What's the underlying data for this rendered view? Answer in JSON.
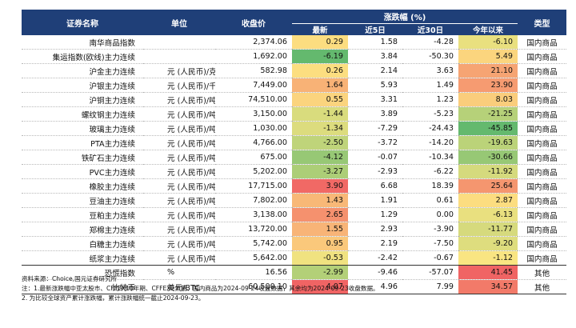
{
  "table": {
    "headers": {
      "name": "证券名称",
      "unit": "单位",
      "close": "收盘价",
      "change_group": "涨跌幅 (%)",
      "latest": "最新",
      "d5": "近5日",
      "d30": "近30日",
      "ytd": "今年以来",
      "type": "类型"
    },
    "rows": [
      {
        "name": "南华商品指数",
        "unit": "",
        "close": "2,374.06",
        "latest": "0.29",
        "d5": "1.58",
        "d30": "-4.28",
        "ytd": "-6.10",
        "type": "国内商品"
      },
      {
        "name": "集运指数(欧线)主力连续",
        "unit": "",
        "close": "1,692.00",
        "latest": "-6.19",
        "d5": "3.84",
        "d30": "-50.30",
        "ytd": "5.49",
        "type": "国内商品"
      },
      {
        "name": "沪金主力连续",
        "unit": "元 (人民币)/克",
        "close": "582.98",
        "latest": "0.26",
        "d5": "2.14",
        "d30": "3.63",
        "ytd": "21.10",
        "type": "国内商品"
      },
      {
        "name": "沪银主力连续",
        "unit": "元 (人民币)/千克",
        "close": "7,449.00",
        "latest": "1.64",
        "d5": "5.93",
        "d30": "1.49",
        "ytd": "23.90",
        "type": "国内商品"
      },
      {
        "name": "沪铜主力连续",
        "unit": "元 (人民币)/吨",
        "close": "74,510.00",
        "latest": "0.55",
        "d5": "3.31",
        "d30": "1.23",
        "ytd": "8.03",
        "type": "国内商品"
      },
      {
        "name": "螺纹钢主力连续",
        "unit": "元 (人民币)/吨",
        "close": "3,150.00",
        "latest": "-1.44",
        "d5": "3.89",
        "d30": "-5.23",
        "ytd": "-21.25",
        "type": "国内商品"
      },
      {
        "name": "玻璃主力连续",
        "unit": "元 (人民币)/吨",
        "close": "1,030.00",
        "latest": "-1.34",
        "d5": "-7.29",
        "d30": "-24.43",
        "ytd": "-45.85",
        "type": "国内商品"
      },
      {
        "name": "PTA主力连续",
        "unit": "元 (人民币)/吨",
        "close": "4,766.00",
        "latest": "-2.50",
        "d5": "-3.72",
        "d30": "-14.20",
        "ytd": "-19.63",
        "type": "国内商品"
      },
      {
        "name": "铁矿石主力连续",
        "unit": "元 (人民币)/吨",
        "close": "675.00",
        "latest": "-4.12",
        "d5": "-0.07",
        "d30": "-10.34",
        "ytd": "-30.66",
        "type": "国内商品"
      },
      {
        "name": "PVC主力连续",
        "unit": "元 (人民币)/吨",
        "close": "5,202.00",
        "latest": "-3.27",
        "d5": "-2.93",
        "d30": "-6.22",
        "ytd": "-11.92",
        "type": "国内商品"
      },
      {
        "name": "橡胶主力连续",
        "unit": "元 (人民币)/吨",
        "close": "17,715.00",
        "latest": "3.90",
        "d5": "6.68",
        "d30": "18.39",
        "ytd": "25.64",
        "type": "国内商品"
      },
      {
        "name": "豆油主力连续",
        "unit": "元 (人民币)/吨",
        "close": "7,802.00",
        "latest": "1.43",
        "d5": "1.91",
        "d30": "0.61",
        "ytd": "2.87",
        "type": "国内商品"
      },
      {
        "name": "豆粕主力连续",
        "unit": "元 (人民币)/吨",
        "close": "3,138.00",
        "latest": "2.65",
        "d5": "1.29",
        "d30": "0.00",
        "ytd": "-6.13",
        "type": "国内商品"
      },
      {
        "name": "郑棉主力连续",
        "unit": "元 (人民币)/吨",
        "close": "13,720.00",
        "latest": "1.55",
        "d5": "2.93",
        "d30": "-3.90",
        "ytd": "-11.77",
        "type": "国内商品"
      },
      {
        "name": "白糖主力连续",
        "unit": "元 (人民币)/吨",
        "close": "5,742.00",
        "latest": "0.95",
        "d5": "2.19",
        "d30": "-7.50",
        "ytd": "-9.20",
        "type": "国内商品"
      },
      {
        "name": "纸浆主力连续",
        "unit": "元 (人民币)/吨",
        "close": "5,642.00",
        "latest": "-0.53",
        "d5": "-2.42",
        "d30": "-0.67",
        "ytd": "-1.12",
        "type": "国内商品"
      },
      {
        "name": "恐慌指数",
        "unit": "%",
        "close": "16.56",
        "latest": "-2.99",
        "d5": "-9.46",
        "d30": "-57.07",
        "ytd": "41.45",
        "type": "其他"
      },
      {
        "name": "比特币",
        "unit": "美元/BTC",
        "close": "60,500.10",
        "latest": "4.07",
        "d5": "4.96",
        "d30": "7.99",
        "ytd": "34.57",
        "type": "其他"
      }
    ]
  },
  "colors": {
    "header_bg": "#1f3f78",
    "latest_scale": {
      "min": -6.19,
      "max": 4.07
    },
    "ytd_scale": {
      "min": -45.85,
      "max": 41.45
    }
  },
  "notes": {
    "source": "资料来源：Choice,国元证券研究所",
    "note1": "注：1.最新涨跌幅中亚太股市、CFFEX10年期、CFFEX2年期、国内商品为2024-09-24收盘数据，其余均为2024-09-23收盘数据。",
    "note2": "2. 为比较全球资产累计涨跌幅，累计涨跌幅统一截止2024-09-23。"
  }
}
